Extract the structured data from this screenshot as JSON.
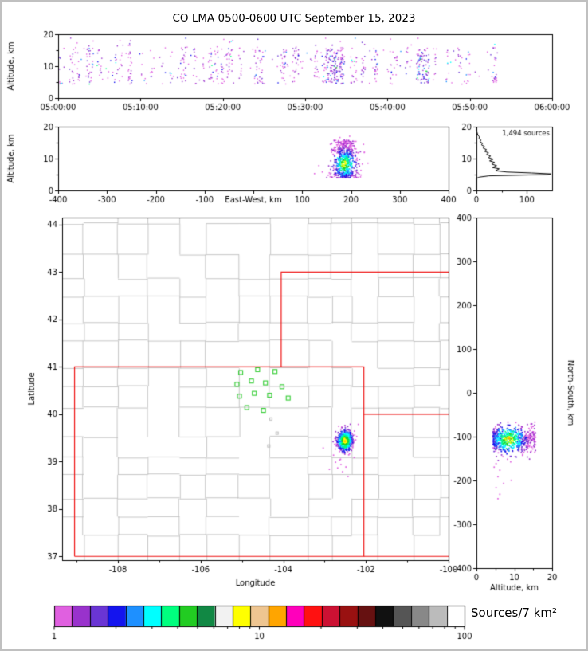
{
  "title": "CO LMA 0500-0600 UTC September 15, 2023",
  "colorbar_label": "Sources/7 km²",
  "colors": {
    "state_border": "#ee1111",
    "station": "#33cc33",
    "county": "#b8b8b8",
    "extra_marker": "#bbbbbb",
    "histogram_line": "#000000",
    "frame": "#000000"
  },
  "chart_data": {
    "type": "multi_panel",
    "palette": [
      "#E060E0",
      "#9932CC",
      "#6A35D4",
      "#1414EE",
      "#1E90FF",
      "#00FFFF",
      "#00FF7F",
      "#22CC22",
      "#FFFF00",
      "#FFA500",
      "#FF1111"
    ],
    "panels": {
      "time_height": {
        "type": "scatter",
        "ylabel": "Altitude, km",
        "ylim": [
          0,
          20
        ],
        "yticks": [
          0,
          10,
          20
        ],
        "yticks_minor": [
          5,
          15
        ],
        "xlim_seconds": [
          0,
          3600
        ],
        "xticks_seconds": [
          0,
          600,
          1200,
          1800,
          2400,
          3000,
          3600
        ],
        "xtick_labels": [
          "05:00:00",
          "05:10:00",
          "05:20:00",
          "05:30:00",
          "05:40:00",
          "05:50:00",
          "06:00:00"
        ],
        "streaks": {
          "n": 72,
          "t_max": 3200,
          "alt_range": [
            4.5,
            16
          ]
        },
        "bursts": [
          {
            "t": 1990,
            "n": 60
          },
          {
            "t": 2045,
            "n": 45
          },
          {
            "t": 2660,
            "n": 70
          }
        ]
      },
      "east_west": {
        "type": "scatter",
        "xlabel": "East-West, km",
        "xlim": [
          -400,
          400
        ],
        "xticks": [
          -400,
          -300,
          -200,
          -100,
          0,
          100,
          200,
          300,
          400
        ],
        "xtick_labels": [
          "-400",
          "-300",
          "-200",
          "-100",
          "",
          "100",
          "200",
          "300",
          "400"
        ],
        "ylabel": "Altitude, km",
        "ylim": [
          0,
          20
        ],
        "yticks": [
          0,
          10,
          20
        ],
        "yticks_minor": [
          5,
          15
        ],
        "cluster": {
          "x_mean": 186,
          "x_sd": 13,
          "alt_min": 4.2,
          "alt_max": 16,
          "n": 650
        },
        "strays": [
          [
            140,
            6
          ],
          [
            152,
            5
          ],
          [
            163,
            7.2
          ],
          [
            133,
            8
          ],
          [
            124,
            5.5
          ],
          [
            213,
            12
          ],
          [
            222,
            8.5
          ],
          [
            176,
            16.8
          ],
          [
            196,
            17.2
          ]
        ]
      },
      "histogram": {
        "type": "line",
        "annotation": "1,494 sources",
        "xlim": [
          0,
          150
        ],
        "xticks": [
          0,
          100
        ],
        "xticks_minor": [
          50
        ],
        "ylim": [
          0,
          20
        ],
        "yticks": [
          0,
          10,
          20
        ],
        "yticks_minor": [
          5,
          15
        ],
        "profile": [
          [
            0,
            0
          ],
          [
            0,
            3.8
          ],
          [
            6,
            4.2
          ],
          [
            25,
            4.6
          ],
          [
            140,
            5.0
          ],
          [
            148,
            5.2
          ],
          [
            110,
            5.5
          ],
          [
            60,
            5.8
          ],
          [
            38,
            6.2
          ],
          [
            45,
            6.8
          ],
          [
            32,
            7.2
          ],
          [
            40,
            7.8
          ],
          [
            30,
            8.3
          ],
          [
            36,
            8.8
          ],
          [
            26,
            9.3
          ],
          [
            33,
            9.8
          ],
          [
            24,
            10.3
          ],
          [
            28,
            10.8
          ],
          [
            20,
            11.3
          ],
          [
            24,
            11.8
          ],
          [
            16,
            12.3
          ],
          [
            20,
            12.8
          ],
          [
            13,
            13.3
          ],
          [
            16,
            13.8
          ],
          [
            10,
            14.3
          ],
          [
            12,
            14.8
          ],
          [
            7,
            15.3
          ],
          [
            9,
            15.8
          ],
          [
            5,
            16.3
          ],
          [
            6,
            16.8
          ],
          [
            3,
            17.3
          ],
          [
            2,
            17.8
          ],
          [
            1,
            18.3
          ],
          [
            0,
            19
          ],
          [
            0,
            20
          ]
        ]
      },
      "map": {
        "type": "scatter",
        "xlabel": "Longitude",
        "ylabel": "Latitude",
        "xlim": [
          -109.35,
          -100.0
        ],
        "xticks": [
          -108,
          -106,
          -104,
          -102,
          -100
        ],
        "xticks_minor": [
          -109,
          -107,
          -105,
          -103,
          -101
        ],
        "ylim": [
          36.92,
          44.15
        ],
        "yticks": [
          37,
          38,
          39,
          40,
          41,
          42,
          43,
          44
        ],
        "state_borders": [
          [
            [
              -109.05,
              37.0
            ],
            [
              -109.05,
              41.0
            ],
            [
              -102.05,
              41.0
            ],
            [
              -102.05,
              37.0
            ],
            [
              -109.05,
              37.0
            ]
          ],
          [
            [
              -104.05,
              41.0
            ],
            [
              -104.05,
              43.0
            ],
            [
              -100.0,
              43.0
            ]
          ],
          [
            [
              -102.05,
              40.0
            ],
            [
              -100.0,
              40.0
            ]
          ],
          [
            [
              -102.05,
              37.0
            ],
            [
              -100.0,
              37.0
            ]
          ]
        ],
        "stations": [
          [
            -105.03,
            40.88
          ],
          [
            -104.62,
            40.94
          ],
          [
            -104.2,
            40.9
          ],
          [
            -105.12,
            40.63
          ],
          [
            -104.77,
            40.7
          ],
          [
            -104.43,
            40.66
          ],
          [
            -104.03,
            40.58
          ],
          [
            -105.06,
            40.38
          ],
          [
            -104.7,
            40.44
          ],
          [
            -104.33,
            40.4
          ],
          [
            -103.88,
            40.34
          ],
          [
            -104.88,
            40.14
          ],
          [
            -104.48,
            40.08
          ]
        ],
        "extra_markers": [
          [
            -104.3,
            39.9
          ],
          [
            -104.15,
            39.6
          ],
          [
            -104.35,
            39.33
          ]
        ],
        "cluster": {
          "lon_mean": -102.52,
          "lat_mean": 39.45,
          "lon_sd": 0.09,
          "lat_sd": 0.11,
          "n": 650
        },
        "strays": [
          [
            -102.62,
            38.95
          ],
          [
            -102.7,
            38.88
          ],
          [
            -102.58,
            38.8
          ],
          [
            -102.75,
            39.0
          ],
          [
            -102.5,
            38.9
          ],
          [
            -102.9,
            38.85
          ],
          [
            -103.05,
            39.3
          ],
          [
            -102.3,
            39.1
          ],
          [
            -102.2,
            39.8
          ],
          [
            -102.45,
            38.7
          ],
          [
            -102.8,
            39.15
          ],
          [
            -102.65,
            39.05
          ]
        ]
      },
      "north_south": {
        "type": "scatter",
        "xlabel": "Altitude, km",
        "xlim": [
          0,
          20
        ],
        "xticks": [
          0,
          10,
          20
        ],
        "xticks_minor": [
          5,
          15
        ],
        "ylabel": "North-South, km",
        "ylim": [
          -400,
          400
        ],
        "yticks": [
          -400,
          -300,
          -200,
          -100,
          0,
          100,
          200,
          300,
          400
        ],
        "cluster": {
          "ns_mean": -105,
          "ns_sd": 16,
          "alt_min": 4.2,
          "alt_max": 15.5,
          "n": 650
        },
        "strays": [
          [
            5,
            -160
          ],
          [
            6,
            -175
          ],
          [
            5.5,
            -190
          ],
          [
            7,
            -205
          ],
          [
            5,
            -215
          ],
          [
            6,
            -230
          ],
          [
            8,
            -150
          ],
          [
            4.5,
            -168
          ],
          [
            5.5,
            -240
          ],
          [
            9,
            -198
          ]
        ]
      }
    },
    "colorbar": {
      "scale": "log",
      "colors": [
        "#E060E0",
        "#9932CC",
        "#6A35D4",
        "#1414EE",
        "#1E90FF",
        "#00FFFF",
        "#00FF7F",
        "#22CC22",
        "#118844",
        "#F2F2F2",
        "#FFFF00",
        "#EEC591",
        "#FFA500",
        "#FF00BB",
        "#FF1111",
        "#CC1133",
        "#991111",
        "#661111",
        "#111111",
        "#555555",
        "#888888",
        "#BBBBBB",
        "#FFFFFF"
      ],
      "ticks": [
        {
          "v": 1,
          "label": "1"
        },
        {
          "v": 10,
          "label": "10"
        },
        {
          "v": 100,
          "label": "100"
        }
      ]
    }
  }
}
